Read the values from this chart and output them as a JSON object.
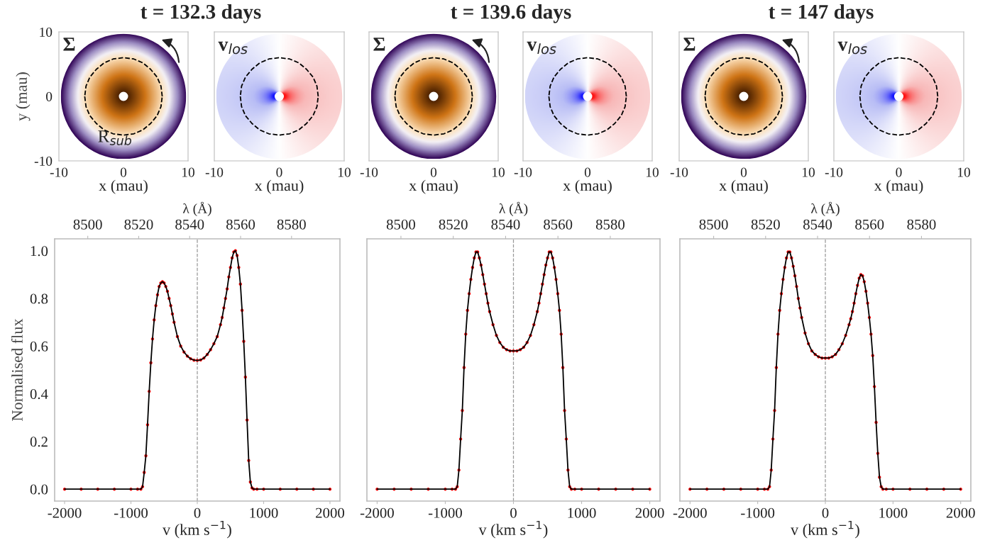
{
  "chart_data": [
    {
      "type": "line",
      "title": "t = 132.3 days",
      "xlabel": "x (mau)",
      "ylabel": "y (mau)",
      "xlim": [
        -10,
        10
      ],
      "ylim": [
        -10,
        10
      ],
      "xticks": [
        -10,
        0,
        10
      ],
      "yticks": [
        -10,
        0,
        10
      ],
      "annotations": [
        "Σ",
        "R$_{sub}$"
      ],
      "series": [
        {
          "color": "#000000",
          "line_style": "dashed",
          "x": [
            6,
            5.8,
            5.2,
            4.2,
            3,
            1.6,
            0,
            -1.6,
            -3,
            -4.2,
            -5.2,
            -5.8,
            -6,
            -5.8,
            -5.2,
            -4.2,
            -3,
            -1.6,
            0,
            1.6,
            3,
            4.2,
            5.2,
            5.8,
            6
          ],
          "values": [
            0,
            1.6,
            3,
            4.2,
            5.2,
            5.8,
            6,
            5.8,
            5.2,
            4.2,
            3,
            1.6,
            0,
            -1.6,
            -3,
            -4.2,
            -5.2,
            -5.8,
            -6,
            -5.8,
            -5.2,
            -4.2,
            -3,
            -1.6,
            0
          ]
        }
      ]
    },
    {
      "type": "line",
      "xlabel": "x (mau)",
      "xlim": [
        -10,
        10
      ],
      "ylim": [
        -10,
        10
      ],
      "xticks": [
        -10,
        0,
        10
      ],
      "yticks": [
        -10,
        0,
        10
      ],
      "tick_labels": "x",
      "annotations": [
        "v$_{los}$"
      ],
      "series": [
        {
          "color": "#000000",
          "line_style": "dashed",
          "x": [
            6,
            5.8,
            5.2,
            4.2,
            3,
            1.6,
            0,
            -1.6,
            -3,
            -4.2,
            -5.2,
            -5.8,
            -6,
            -5.8,
            -5.2,
            -4.2,
            -3,
            -1.6,
            0,
            1.6,
            3,
            4.2,
            5.2,
            5.8,
            6
          ],
          "values": [
            0,
            1.6,
            3,
            4.2,
            5.2,
            5.8,
            6,
            5.8,
            5.2,
            4.2,
            3,
            1.6,
            0,
            -1.6,
            -3,
            -4.2,
            -5.2,
            -5.8,
            -6,
            -5.8,
            -5.2,
            -4.2,
            -3,
            -1.6,
            0
          ]
        }
      ]
    },
    {
      "type": "line",
      "title": "t = 139.6 days",
      "xlabel": "x (mau)",
      "xlim": [
        -10,
        10
      ],
      "ylim": [
        -10,
        10
      ],
      "xticks": [
        -10,
        0,
        10
      ],
      "yticks": [
        -10,
        0,
        10
      ],
      "tick_labels": "x",
      "annotations": [
        "Σ"
      ],
      "series": [
        {
          "color": "#000000",
          "line_style": "dashed",
          "x": [
            6,
            5.8,
            5.2,
            4.2,
            3,
            1.6,
            0,
            -1.6,
            -3,
            -4.2,
            -5.2,
            -5.8,
            -6,
            -5.8,
            -5.2,
            -4.2,
            -3,
            -1.6,
            0,
            1.6,
            3,
            4.2,
            5.2,
            5.8,
            6
          ],
          "values": [
            0,
            1.6,
            3,
            4.2,
            5.2,
            5.8,
            6,
            5.8,
            5.2,
            4.2,
            3,
            1.6,
            0,
            -1.6,
            -3,
            -4.2,
            -5.2,
            -5.8,
            -6,
            -5.8,
            -5.2,
            -4.2,
            -3,
            -1.6,
            0
          ]
        }
      ]
    },
    {
      "type": "line",
      "xlabel": "x (mau)",
      "xlim": [
        -10,
        10
      ],
      "ylim": [
        -10,
        10
      ],
      "xticks": [
        -10,
        0,
        10
      ],
      "yticks": [
        -10,
        0,
        10
      ],
      "tick_labels": "x",
      "annotations": [
        "v$_{los}$"
      ],
      "series": [
        {
          "color": "#000000",
          "line_style": "dashed",
          "x": [
            6,
            5.8,
            5.2,
            4.2,
            3,
            1.6,
            0,
            -1.6,
            -3,
            -4.2,
            -5.2,
            -5.8,
            -6,
            -5.8,
            -5.2,
            -4.2,
            -3,
            -1.6,
            0,
            1.6,
            3,
            4.2,
            5.2,
            5.8,
            6
          ],
          "values": [
            0,
            1.6,
            3,
            4.2,
            5.2,
            5.8,
            6,
            5.8,
            5.2,
            4.2,
            3,
            1.6,
            0,
            -1.6,
            -3,
            -4.2,
            -5.2,
            -5.8,
            -6,
            -5.8,
            -5.2,
            -4.2,
            -3,
            -1.6,
            0
          ]
        }
      ]
    },
    {
      "type": "line",
      "title": "t = 147 days",
      "xlabel": "x (mau)",
      "xlim": [
        -10,
        10
      ],
      "ylim": [
        -10,
        10
      ],
      "xticks": [
        -10,
        0,
        10
      ],
      "yticks": [
        -10,
        0,
        10
      ],
      "tick_labels": "x",
      "annotations": [
        "Σ"
      ],
      "series": [
        {
          "color": "#000000",
          "line_style": "dashed",
          "x": [
            6,
            5.8,
            5.2,
            4.2,
            3,
            1.6,
            0,
            -1.6,
            -3,
            -4.2,
            -5.2,
            -5.8,
            -6,
            -5.8,
            -5.2,
            -4.2,
            -3,
            -1.6,
            0,
            1.6,
            3,
            4.2,
            5.2,
            5.8,
            6
          ],
          "values": [
            0,
            1.6,
            3,
            4.2,
            5.2,
            5.8,
            6,
            5.8,
            5.2,
            4.2,
            3,
            1.6,
            0,
            -1.6,
            -3,
            -4.2,
            -5.2,
            -5.8,
            -6,
            -5.8,
            -5.2,
            -4.2,
            -3,
            -1.6,
            0
          ]
        }
      ]
    },
    {
      "type": "line",
      "xlabel": "x (mau)",
      "xlim": [
        -10,
        10
      ],
      "ylim": [
        -10,
        10
      ],
      "xticks": [
        -10,
        0,
        10
      ],
      "yticks": [
        -10,
        0,
        10
      ],
      "tick_labels": "x",
      "annotations": [
        "v$_{los}$"
      ],
      "series": [
        {
          "color": "#000000",
          "line_style": "dashed",
          "x": [
            6,
            5.8,
            5.2,
            4.2,
            3,
            1.6,
            0,
            -1.6,
            -3,
            -4.2,
            -5.2,
            -5.8,
            -6,
            -5.8,
            -5.2,
            -4.2,
            -3,
            -1.6,
            0,
            1.6,
            3,
            4.2,
            5.2,
            5.8,
            6
          ],
          "values": [
            0,
            1.6,
            3,
            4.2,
            5.2,
            5.8,
            6,
            5.8,
            5.2,
            4.2,
            3,
            1.6,
            0,
            -1.6,
            -3,
            -4.2,
            -5.2,
            -5.8,
            -6,
            -5.8,
            -5.2,
            -4.2,
            -3,
            -1.6,
            0
          ]
        }
      ]
    },
    {
      "type": "line",
      "xlabel": "v (km s$^{−1}$)",
      "ylabel": "Normalised flux",
      "x2label": "λ (Å)",
      "xlim": [
        -2150,
        2150
      ],
      "ylim": [
        -0.05,
        1.05
      ],
      "xticks": [
        -2000,
        -1000,
        0,
        1000,
        2000
      ],
      "yticks": [
        {
          "value": 0,
          "label": "0.0"
        },
        0.2,
        0.4,
        0.6,
        0.8,
        {
          "value": 1,
          "label": "1.0"
        }
      ],
      "x2lim": [
        8487,
        8599
      ],
      "x2ticks": [
        8500,
        8520,
        8540,
        8560,
        8580
      ],
      "grid": false,
      "ref_lines": [
        {
          "axis": "x",
          "value": 0,
          "color": "#999999",
          "line_style": "dashed"
        }
      ],
      "x": [
        -2000,
        -1750,
        -1500,
        -1250,
        -1000,
        -900,
        -850,
        -825,
        -800,
        -775,
        -750,
        -725,
        -700,
        -675,
        -650,
        -625,
        -600,
        -575,
        -550,
        -525,
        -500,
        -475,
        -450,
        -425,
        -400,
        -375,
        -350,
        -300,
        -250,
        -200,
        -150,
        -100,
        -50,
        0,
        50,
        100,
        150,
        200,
        250,
        300,
        350,
        375,
        400,
        425,
        450,
        475,
        500,
        525,
        550,
        575,
        600,
        625,
        650,
        675,
        700,
        725,
        750,
        775,
        800,
        825,
        850,
        900,
        1000,
        1250,
        1500,
        1750,
        2000
      ],
      "series": [
        {
          "type": "scatter",
          "marker": "circle",
          "color": "#ff0000",
          "values": [
            0,
            0,
            0,
            0,
            0,
            0,
            0,
            0.01,
            0.07,
            0.14,
            0.27,
            0.41,
            0.53,
            0.63,
            0.71,
            0.77,
            0.815,
            0.85,
            0.865,
            0.87,
            0.865,
            0.85,
            0.83,
            0.8,
            0.77,
            0.735,
            0.7,
            0.64,
            0.6,
            0.575,
            0.558,
            0.547,
            0.541,
            0.54,
            0.542,
            0.55,
            0.565,
            0.585,
            0.61,
            0.64,
            0.69,
            0.72,
            0.76,
            0.8,
            0.84,
            0.89,
            0.93,
            0.97,
            0.995,
            1.0,
            0.98,
            0.93,
            0.86,
            0.75,
            0.62,
            0.47,
            0.29,
            0.12,
            0.03,
            0.005,
            0,
            0,
            0,
            0,
            0,
            0,
            0
          ]
        },
        {
          "type": "line",
          "color": "#000000",
          "values": [
            0,
            0,
            0,
            0,
            0,
            0,
            0,
            0.01,
            0.07,
            0.14,
            0.27,
            0.41,
            0.53,
            0.63,
            0.71,
            0.77,
            0.815,
            0.85,
            0.865,
            0.87,
            0.865,
            0.85,
            0.83,
            0.8,
            0.77,
            0.735,
            0.7,
            0.64,
            0.6,
            0.575,
            0.558,
            0.547,
            0.541,
            0.54,
            0.542,
            0.55,
            0.565,
            0.585,
            0.61,
            0.64,
            0.69,
            0.72,
            0.76,
            0.8,
            0.84,
            0.89,
            0.93,
            0.97,
            0.995,
            1.0,
            0.98,
            0.93,
            0.86,
            0.75,
            0.62,
            0.47,
            0.29,
            0.12,
            0.03,
            0.005,
            0,
            0,
            0,
            0,
            0,
            0,
            0
          ]
        }
      ]
    },
    {
      "type": "line",
      "xlabel": "v (km s$^{−1}$)",
      "x2label": "λ (Å)",
      "xlim": [
        -2150,
        2150
      ],
      "ylim": [
        -0.05,
        1.05
      ],
      "xticks": [
        -2000,
        -1000,
        0,
        1000,
        2000
      ],
      "yticks": [
        0,
        0.2,
        0.4,
        0.6,
        0.8,
        1
      ],
      "x2lim": [
        8487,
        8599
      ],
      "x2ticks": [
        8500,
        8520,
        8540,
        8560,
        8580
      ],
      "tick_labels": "x",
      "grid": false,
      "ref_lines": [
        {
          "axis": "x",
          "value": 0,
          "color": "#999999",
          "line_style": "dashed"
        }
      ],
      "x": [
        -2000,
        -1750,
        -1500,
        -1250,
        -1000,
        -900,
        -850,
        -825,
        -800,
        -775,
        -750,
        -725,
        -700,
        -675,
        -650,
        -625,
        -600,
        -575,
        -550,
        -525,
        -500,
        -475,
        -450,
        -425,
        -400,
        -375,
        -350,
        -300,
        -250,
        -200,
        -150,
        -100,
        -50,
        0,
        50,
        100,
        150,
        200,
        250,
        300,
        350,
        375,
        400,
        425,
        450,
        475,
        500,
        525,
        550,
        575,
        600,
        625,
        650,
        675,
        700,
        725,
        750,
        775,
        800,
        825,
        850,
        900,
        1000,
        1250,
        1500,
        1750,
        2000
      ],
      "series": [
        {
          "type": "scatter",
          "marker": "circle",
          "color": "#ff0000",
          "values": [
            0,
            0,
            0,
            0,
            0,
            0,
            0,
            0.01,
            0.08,
            0.21,
            0.33,
            0.51,
            0.65,
            0.75,
            0.82,
            0.88,
            0.93,
            0.97,
            0.995,
            0.995,
            0.97,
            0.94,
            0.9,
            0.86,
            0.82,
            0.78,
            0.745,
            0.69,
            0.645,
            0.615,
            0.595,
            0.585,
            0.58,
            0.58,
            0.58,
            0.585,
            0.595,
            0.615,
            0.645,
            0.69,
            0.745,
            0.78,
            0.82,
            0.86,
            0.9,
            0.94,
            0.97,
            0.995,
            0.995,
            0.97,
            0.93,
            0.88,
            0.82,
            0.75,
            0.65,
            0.51,
            0.33,
            0.21,
            0.08,
            0.01,
            0,
            0,
            0,
            0,
            0,
            0,
            0
          ]
        },
        {
          "type": "line",
          "color": "#000000",
          "values": [
            0,
            0,
            0,
            0,
            0,
            0,
            0,
            0.01,
            0.08,
            0.21,
            0.33,
            0.51,
            0.65,
            0.75,
            0.82,
            0.88,
            0.93,
            0.97,
            0.995,
            0.995,
            0.97,
            0.94,
            0.9,
            0.86,
            0.82,
            0.78,
            0.745,
            0.69,
            0.645,
            0.615,
            0.595,
            0.585,
            0.58,
            0.58,
            0.58,
            0.585,
            0.595,
            0.615,
            0.645,
            0.69,
            0.745,
            0.78,
            0.82,
            0.86,
            0.9,
            0.94,
            0.97,
            0.995,
            0.995,
            0.97,
            0.93,
            0.88,
            0.82,
            0.75,
            0.65,
            0.51,
            0.33,
            0.21,
            0.08,
            0.01,
            0,
            0,
            0,
            0,
            0,
            0,
            0
          ]
        }
      ]
    },
    {
      "type": "line",
      "xlabel": "v (km s$^{−1}$)",
      "x2label": "λ (Å)",
      "xlim": [
        -2150,
        2150
      ],
      "ylim": [
        -0.05,
        1.05
      ],
      "xticks": [
        -2000,
        -1000,
        0,
        1000,
        2000
      ],
      "yticks": [
        0,
        0.2,
        0.4,
        0.6,
        0.8,
        1
      ],
      "x2lim": [
        8487,
        8599
      ],
      "x2ticks": [
        8500,
        8520,
        8540,
        8560,
        8580
      ],
      "tick_labels": "x",
      "grid": false,
      "ref_lines": [
        {
          "axis": "x",
          "value": 0,
          "color": "#999999",
          "line_style": "dashed"
        }
      ],
      "x": [
        -2000,
        -1750,
        -1500,
        -1250,
        -1000,
        -900,
        -850,
        -825,
        -800,
        -775,
        -750,
        -725,
        -700,
        -675,
        -650,
        -625,
        -600,
        -575,
        -550,
        -525,
        -500,
        -475,
        -450,
        -425,
        -400,
        -375,
        -350,
        -300,
        -250,
        -200,
        -150,
        -100,
        -50,
        0,
        50,
        100,
        150,
        200,
        250,
        300,
        350,
        375,
        400,
        425,
        450,
        475,
        500,
        525,
        550,
        575,
        600,
        625,
        650,
        675,
        700,
        725,
        750,
        775,
        800,
        825,
        850,
        900,
        1000,
        1250,
        1500,
        1750,
        2000
      ],
      "series": [
        {
          "type": "scatter",
          "marker": "circle",
          "color": "#ff0000",
          "values": [
            0,
            0,
            0,
            0,
            0,
            0,
            0,
            0.01,
            0.08,
            0.21,
            0.33,
            0.51,
            0.65,
            0.75,
            0.82,
            0.88,
            0.93,
            0.97,
            0.995,
            0.995,
            0.97,
            0.935,
            0.895,
            0.85,
            0.8,
            0.76,
            0.72,
            0.655,
            0.61,
            0.58,
            0.565,
            0.555,
            0.55,
            0.55,
            0.55,
            0.555,
            0.565,
            0.585,
            0.61,
            0.645,
            0.69,
            0.715,
            0.745,
            0.78,
            0.82,
            0.855,
            0.885,
            0.9,
            0.895,
            0.87,
            0.83,
            0.78,
            0.72,
            0.65,
            0.56,
            0.43,
            0.28,
            0.15,
            0.05,
            0.01,
            0,
            0,
            0,
            0,
            0,
            0,
            0
          ]
        },
        {
          "type": "line",
          "color": "#000000",
          "values": [
            0,
            0,
            0,
            0,
            0,
            0,
            0,
            0.01,
            0.08,
            0.21,
            0.33,
            0.51,
            0.65,
            0.75,
            0.82,
            0.88,
            0.93,
            0.97,
            0.995,
            0.995,
            0.97,
            0.935,
            0.895,
            0.85,
            0.8,
            0.76,
            0.72,
            0.655,
            0.61,
            0.58,
            0.565,
            0.555,
            0.55,
            0.55,
            0.55,
            0.555,
            0.565,
            0.585,
            0.61,
            0.645,
            0.69,
            0.715,
            0.745,
            0.78,
            0.82,
            0.855,
            0.885,
            0.9,
            0.895,
            0.87,
            0.83,
            0.78,
            0.72,
            0.65,
            0.56,
            0.43,
            0.28,
            0.15,
            0.05,
            0.01,
            0,
            0,
            0,
            0,
            0,
            0,
            0
          ]
        }
      ]
    }
  ]
}
